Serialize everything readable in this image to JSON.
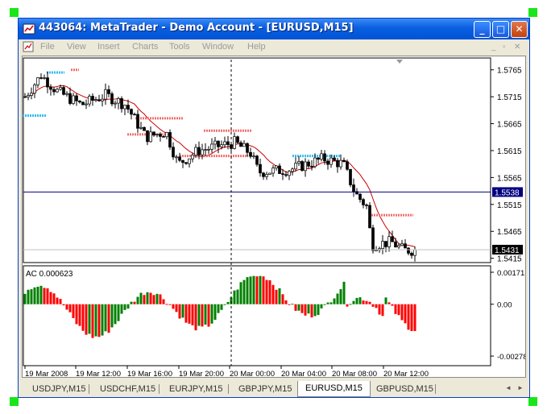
{
  "window": {
    "title": "443064: MetaTrader - Demo Account - [EURUSD,M15]",
    "buttons": {
      "minimize": "_",
      "maximize": "□",
      "close": "✕"
    }
  },
  "menu": {
    "items": [
      "File",
      "View",
      "Insert",
      "Charts",
      "Tools",
      "Window",
      "Help"
    ],
    "mdi": {
      "minimize": "_",
      "restore": "▫",
      "close": "✕"
    }
  },
  "chart_data": {
    "type": "candlestick",
    "symbol": "EURUSD,M15",
    "price_ticks": [
      "1.5765",
      "1.5715",
      "1.5665",
      "1.5615",
      "1.5565",
      "1.5515",
      "1.5465",
      "1.5415"
    ],
    "price_range": [
      1.5407,
      1.5787
    ],
    "horizontal_line": {
      "value": 1.5538,
      "label": "1.5538"
    },
    "current_price": {
      "value": 1.5431,
      "label": "1.5431"
    },
    "x_ticks": [
      "19 Mar 2008",
      "19 Mar 12:00",
      "19 Mar 16:00",
      "19 Mar 20:00",
      "20 Mar 00:00",
      "20 Mar 04:00",
      "20 Mar 08:00",
      "20 Mar 12:00"
    ],
    "indicator": {
      "name": "AC",
      "value_label": "AC 0.000623",
      "ticks": [
        "0.001715",
        "0.00",
        "-0.00278"
      ],
      "range": [
        -0.00295,
        0.001715
      ],
      "up_color": "#008000",
      "down_color": "#ff0000"
    },
    "colors": {
      "moving_average": "#cc0000",
      "sell_marks": "#f07070",
      "buy_marks": "#33bbee"
    }
  },
  "tabs": {
    "items": [
      "USDJPY,M15",
      "USDCHF,M15",
      "EURJPY,M15",
      "GBPJPY,M15",
      "EURUSD,M15",
      "GBPUSD,M15"
    ],
    "active": "EURUSD,M15",
    "arrows": {
      "left": "◄",
      "right": "►"
    }
  }
}
